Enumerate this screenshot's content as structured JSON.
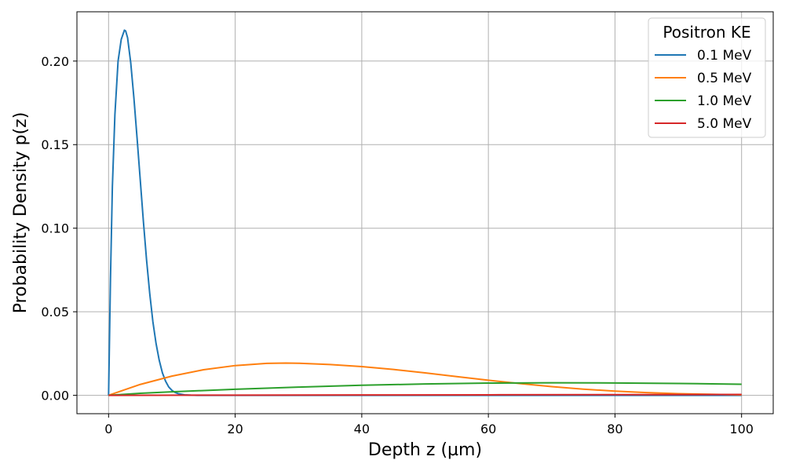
{
  "chart_data": {
    "type": "line",
    "title": "",
    "xlabel": "Depth z (µm)",
    "ylabel": "Probability Density p(z)",
    "xlim": [
      -5,
      105
    ],
    "ylim": [
      -0.011,
      0.2295
    ],
    "xticks": [
      0,
      20,
      40,
      60,
      80,
      100
    ],
    "yticks": [
      0.0,
      0.05,
      0.1,
      0.15,
      0.2
    ],
    "xtick_labels": [
      "0",
      "20",
      "40",
      "60",
      "80",
      "100"
    ],
    "ytick_labels": [
      "0.00",
      "0.05",
      "0.10",
      "0.15",
      "0.20"
    ],
    "grid": true,
    "legend": {
      "title": "Positron KE",
      "placement": "top-right"
    },
    "series": [
      {
        "name": "0.1 MeV",
        "color": "#1f77b4",
        "x": [
          0,
          0.3,
          0.6,
          1.0,
          1.5,
          2.0,
          2.5,
          2.7,
          3.0,
          3.5,
          4.0,
          4.5,
          5.0,
          5.5,
          6.0,
          6.5,
          7.0,
          7.5,
          8.0,
          8.5,
          9.0,
          9.5,
          10.0,
          10.5,
          11.0,
          12.0,
          13.0,
          14.0,
          20.0,
          40.0,
          60.0,
          80.0,
          100.0
        ],
        "y": [
          0.0,
          0.07,
          0.125,
          0.168,
          0.2,
          0.213,
          0.2185,
          0.218,
          0.214,
          0.199,
          0.178,
          0.154,
          0.129,
          0.104,
          0.081,
          0.061,
          0.044,
          0.031,
          0.021,
          0.0135,
          0.0085,
          0.005,
          0.003,
          0.0017,
          0.001,
          0.0003,
          0.0001,
          0.0,
          0.0,
          0.0,
          0.0,
          0.0,
          0.0
        ]
      },
      {
        "name": "0.5 MeV",
        "color": "#ff7f0e",
        "x": [
          0,
          5,
          10,
          15,
          20,
          25,
          28,
          30,
          35,
          40,
          45,
          50,
          55,
          60,
          65,
          70,
          75,
          80,
          85,
          90,
          95,
          100
        ],
        "y": [
          0.0,
          0.0065,
          0.0115,
          0.0153,
          0.0178,
          0.0191,
          0.0193,
          0.0192,
          0.0184,
          0.0172,
          0.0155,
          0.0134,
          0.0112,
          0.009,
          0.007,
          0.0052,
          0.0037,
          0.0025,
          0.0016,
          0.001,
          0.0006,
          0.0003
        ]
      },
      {
        "name": "1.0 MeV",
        "color": "#2ca02c",
        "x": [
          0,
          5,
          10,
          20,
          30,
          40,
          50,
          60,
          70,
          80,
          90,
          100
        ],
        "y": [
          0.0,
          0.0012,
          0.0021,
          0.0036,
          0.0049,
          0.006,
          0.0068,
          0.0073,
          0.0075,
          0.0074,
          0.0071,
          0.0066
        ]
      },
      {
        "name": "5.0 MeV",
        "color": "#d62728",
        "x": [
          0,
          20,
          40,
          60,
          80,
          100
        ],
        "y": [
          0.0,
          0.0001,
          0.0002,
          0.0003,
          0.0004,
          0.0005
        ]
      }
    ]
  }
}
